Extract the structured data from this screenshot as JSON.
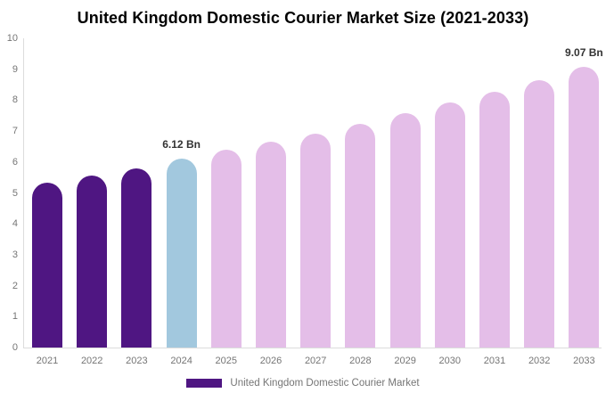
{
  "chart_data": {
    "type": "bar",
    "title": "United Kingdom Domestic Courier Market Size (2021-2033)",
    "categories": [
      "2021",
      "2022",
      "2023",
      "2024",
      "2025",
      "2026",
      "2027",
      "2028",
      "2029",
      "2030",
      "2031",
      "2032",
      "2033"
    ],
    "values": [
      5.32,
      5.56,
      5.79,
      6.12,
      6.39,
      6.66,
      6.93,
      7.22,
      7.58,
      7.92,
      8.27,
      8.64,
      9.07
    ],
    "unit": "Bn",
    "xlabel": "",
    "ylabel": "",
    "ylim": [
      0,
      10
    ],
    "yticks": [
      0,
      1,
      2,
      3,
      4,
      5,
      6,
      7,
      8,
      9,
      10
    ],
    "grid": false,
    "legend_position": "bottom",
    "bar_colors": [
      "#4F1682",
      "#4F1682",
      "#4F1682",
      "#A2C8DE",
      "#E4BEE8",
      "#E4BEE8",
      "#E4BEE8",
      "#E4BEE8",
      "#E4BEE8",
      "#E4BEE8",
      "#E4BEE8",
      "#E4BEE8",
      "#E4BEE8"
    ],
    "annotations": [
      {
        "category": "2024",
        "label": "6.12 Bn"
      },
      {
        "category": "2033",
        "label": "9.07 Bn"
      }
    ]
  },
  "legend": {
    "label": "United Kingdom Domestic Courier Market",
    "swatch_color": "#4F1682"
  },
  "colors": {
    "series_past": "#4F1682",
    "series_current": "#A2C8DE",
    "series_forecast": "#E4BEE8",
    "axis_line": "#dcdcdc",
    "tick_text": "#757575",
    "annotation_text": "#333333",
    "title_text": "#000000"
  }
}
